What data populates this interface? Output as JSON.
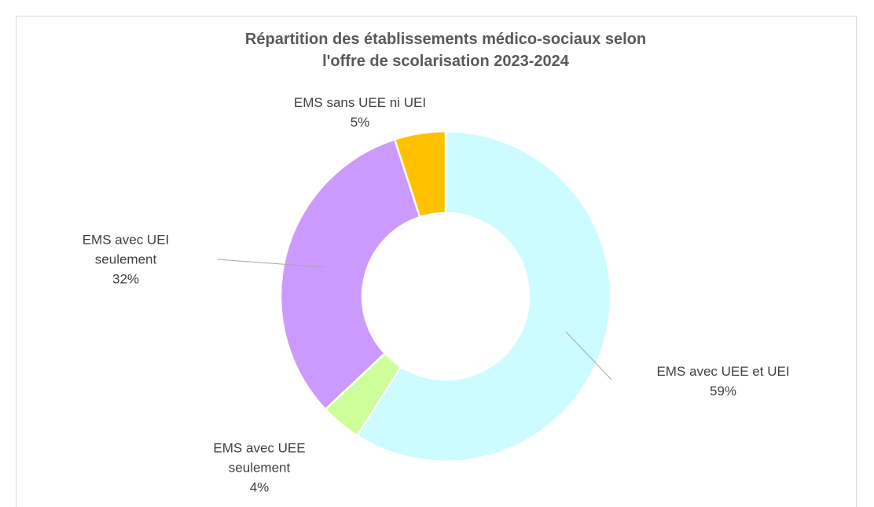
{
  "chart_data": {
    "type": "donut",
    "title": "Répartition des établissements médico-sociaux selon l'offre de scolarisation 2023-2024",
    "categories": [
      "EMS avec UEE et UEI",
      "EMS avec UEE seulement",
      "EMS avec UEI seulement",
      "EMS sans UEE ni UEI"
    ],
    "values": [
      59,
      4,
      32,
      5
    ],
    "value_labels": [
      "59%",
      "4%",
      "32%",
      "5%"
    ],
    "colors": [
      "#ccfcff",
      "#ccff99",
      "#cc99ff",
      "#ffc000"
    ]
  }
}
